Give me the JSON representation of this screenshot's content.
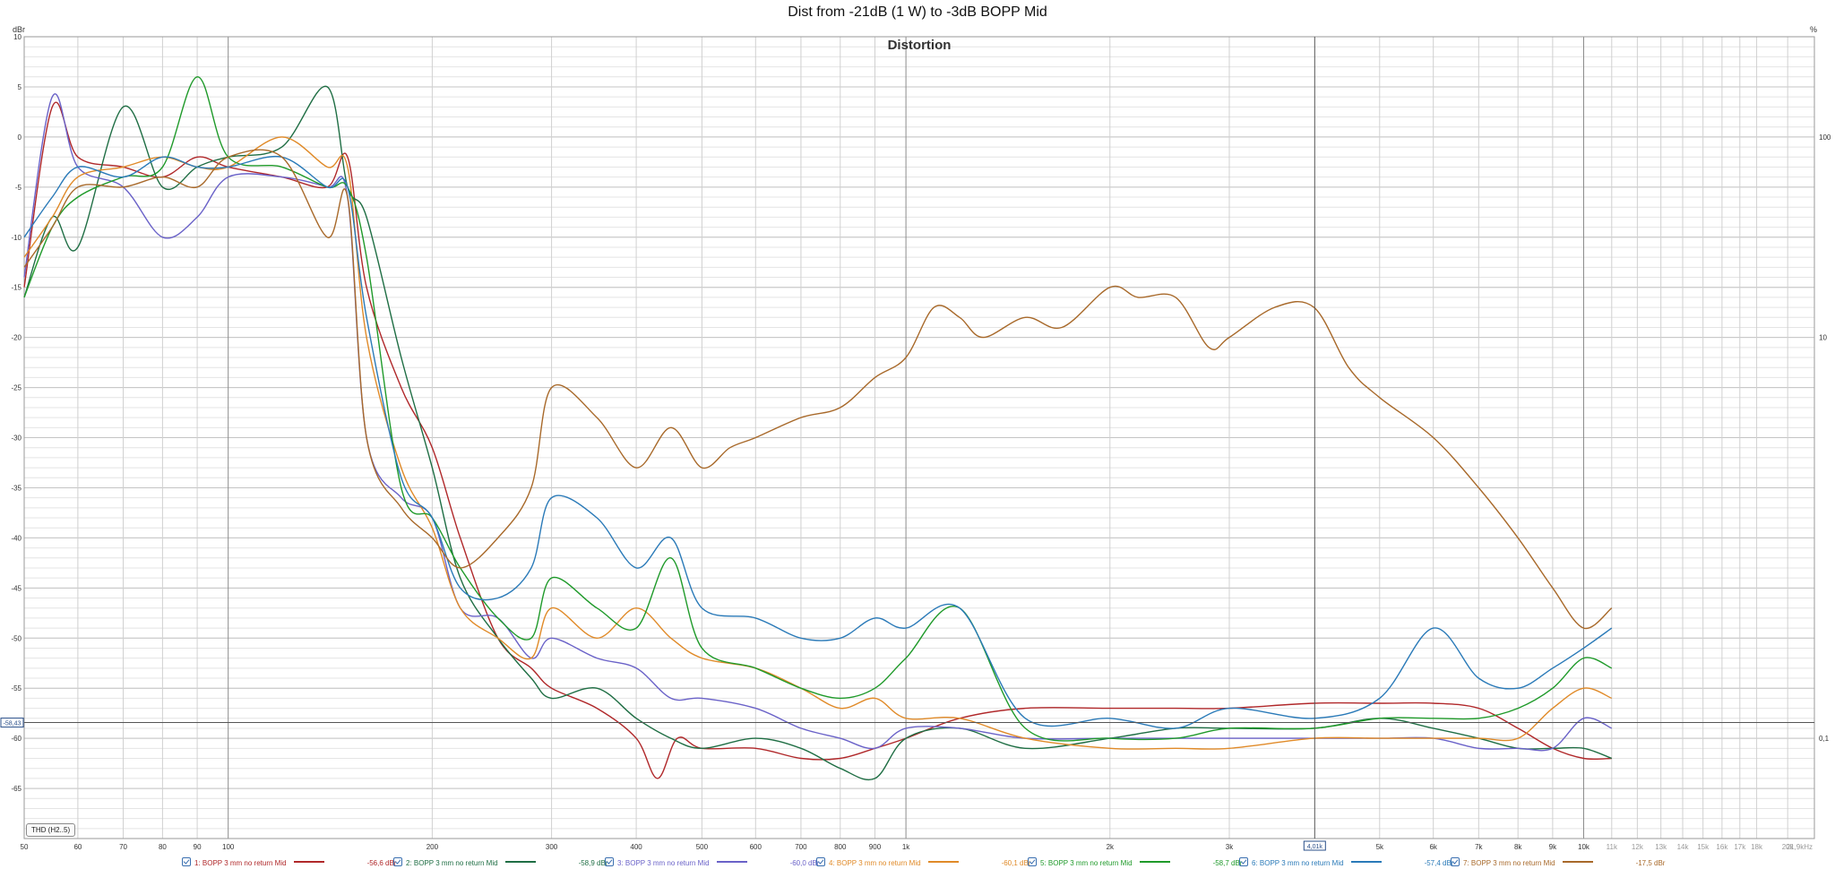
{
  "window": {
    "title": "Dist from -21dB (1 W) to -3dB BOPP Mid"
  },
  "chart_title": "Distortion",
  "units": {
    "left": "dBr",
    "right": "%"
  },
  "cursor": {
    "freq_label": "4,01k",
    "level_label": "-58,43",
    "freq": 4010,
    "level": -58.43
  },
  "thd_button": {
    "label": "THD (H2..5)"
  },
  "colors": {
    "1": "#b0282a",
    "2": "#1f6e44",
    "3": "#6a62c8",
    "4": "#e08a28",
    "5": "#1f9a2a",
    "6": "#2a7ab8",
    "7": "#a8692a"
  },
  "legend": [
    {
      "label": "1: BOPP 3 mm no return Mid",
      "value": "-56,6 dBr",
      "color": "#b0282a"
    },
    {
      "label": "2: BOPP 3 mm no return Mid",
      "value": "-58,9 dBr",
      "color": "#1f6e44"
    },
    {
      "label": "3: BOPP 3 mm no return Mid",
      "value": "-60,0 dBr",
      "color": "#6a62c8"
    },
    {
      "label": "4: BOPP 3 mm no return Mid",
      "value": "-60,1 dBr",
      "color": "#e08a28"
    },
    {
      "label": "5: BOPP 3 mm no return Mid",
      "value": "-58,7 dBr",
      "color": "#1f9a2a"
    },
    {
      "label": "6: BOPP 3 mm no return Mid",
      "value": "-57,4 dBr",
      "color": "#2a7ab8"
    },
    {
      "label": "7: BOPP 3 mm no return Mid",
      "value": "-17,5 dBr",
      "color": "#a8692a"
    }
  ],
  "chart_data": {
    "type": "line",
    "title": "Distortion",
    "xscale": "log",
    "xlim": [
      50,
      21900
    ],
    "ylim": [
      -70,
      10
    ],
    "grid": true,
    "legend_position": "bottom",
    "x_ticks": [
      {
        "v": 50,
        "t": "50"
      },
      {
        "v": 60,
        "t": "60"
      },
      {
        "v": 70,
        "t": "70"
      },
      {
        "v": 80,
        "t": "80"
      },
      {
        "v": 90,
        "t": "90"
      },
      {
        "v": 100,
        "t": "100"
      },
      {
        "v": 200,
        "t": "200"
      },
      {
        "v": 300,
        "t": "300"
      },
      {
        "v": 400,
        "t": "400"
      },
      {
        "v": 500,
        "t": "500"
      },
      {
        "v": 600,
        "t": "600"
      },
      {
        "v": 700,
        "t": "700"
      },
      {
        "v": 800,
        "t": "800"
      },
      {
        "v": 900,
        "t": "900"
      },
      {
        "v": 1000,
        "t": "1k"
      },
      {
        "v": 2000,
        "t": "2k"
      },
      {
        "v": 3000,
        "t": "3k"
      },
      {
        "v": 5000,
        "t": "5k"
      },
      {
        "v": 6000,
        "t": "6k"
      },
      {
        "v": 7000,
        "t": "7k"
      },
      {
        "v": 8000,
        "t": "8k"
      },
      {
        "v": 9000,
        "t": "9k"
      },
      {
        "v": 10000,
        "t": "10k"
      },
      {
        "v": 11000,
        "t": "11k"
      },
      {
        "v": 12000,
        "t": "12k"
      },
      {
        "v": 13000,
        "t": "13k"
      },
      {
        "v": 14000,
        "t": "14k"
      },
      {
        "v": 15000,
        "t": "15k"
      },
      {
        "v": 16000,
        "t": "16k"
      },
      {
        "v": 17000,
        "t": "17k"
      },
      {
        "v": 18000,
        "t": "18k"
      },
      {
        "v": 20000,
        "t": "20k"
      },
      {
        "v": 21900,
        "t": "21,9kHz"
      }
    ],
    "y_ticks": [
      10,
      5,
      0,
      -5,
      -10,
      -15,
      -20,
      -25,
      -30,
      -35,
      -40,
      -45,
      -50,
      -55,
      -60,
      -65
    ],
    "y_right_ticks": [
      {
        "dbr": 0,
        "t": "100"
      },
      {
        "dbr": -20,
        "t": "10"
      },
      {
        "dbr": -60,
        "t": "0,1"
      }
    ],
    "series": [
      {
        "name": "1: BOPP 3 mm no return Mid",
        "color": "#b0282a",
        "x": [
          50,
          55,
          60,
          70,
          80,
          90,
          100,
          120,
          140,
          150,
          160,
          180,
          200,
          220,
          250,
          280,
          300,
          350,
          400,
          430,
          460,
          500,
          600,
          700,
          800,
          900,
          1000,
          1200,
          1500,
          2000,
          2500,
          3000,
          4000,
          5000,
          6000,
          7000,
          8000,
          9000,
          10000,
          11000
        ],
        "y": [
          -15,
          3,
          -2,
          -3,
          -4,
          -2,
          -3,
          -4,
          -5,
          -2,
          -15,
          -25,
          -31,
          -40,
          -50,
          -53,
          -55,
          -57,
          -60,
          -64,
          -60,
          -61,
          -61,
          -62,
          -62,
          -61,
          -60,
          -58,
          -57,
          -57,
          -57,
          -57,
          -56.5,
          -56.5,
          -56.5,
          -57,
          -59,
          -61,
          -62,
          -62
        ]
      },
      {
        "name": "2: BOPP 3 mm no return Mid",
        "color": "#1f6e44",
        "x": [
          50,
          55,
          60,
          70,
          80,
          90,
          100,
          120,
          140,
          150,
          160,
          180,
          200,
          220,
          250,
          280,
          300,
          350,
          400,
          450,
          500,
          600,
          700,
          800,
          900,
          1000,
          1200,
          1500,
          2000,
          2500,
          3000,
          4000,
          5000,
          6000,
          7000,
          8000,
          9000,
          10000,
          11000
        ],
        "y": [
          -16,
          -8,
          -11,
          3,
          -5,
          -3,
          -2,
          -1,
          5,
          -5,
          -8,
          -22,
          -33,
          -44,
          -50,
          -54,
          -56,
          -55,
          -58,
          -60,
          -61,
          -60,
          -61,
          -63,
          -64,
          -60,
          -59,
          -61,
          -60,
          -59,
          -59,
          -59,
          -58,
          -59,
          -60,
          -61,
          -61,
          -61,
          -62
        ]
      },
      {
        "name": "3: BOPP 3 mm no return Mid",
        "color": "#6a62c8",
        "x": [
          50,
          55,
          60,
          70,
          80,
          90,
          100,
          120,
          140,
          150,
          160,
          180,
          200,
          220,
          250,
          280,
          300,
          350,
          400,
          450,
          500,
          600,
          700,
          800,
          900,
          1000,
          1200,
          1500,
          2000,
          2500,
          3000,
          4000,
          5000,
          6000,
          7000,
          8000,
          9000,
          10000,
          11000
        ],
        "y": [
          -14,
          4,
          -3,
          -5,
          -10,
          -8,
          -4,
          -4,
          -5,
          -6,
          -30,
          -36,
          -38,
          -47,
          -48,
          -52,
          -50,
          -52,
          -53,
          -56,
          -56,
          -57,
          -59,
          -60,
          -61,
          -59,
          -59,
          -60,
          -60,
          -60,
          -60,
          -60,
          -60,
          -60,
          -61,
          -61,
          -61,
          -58,
          -59
        ]
      },
      {
        "name": "4: BOPP 3 mm no return Mid",
        "color": "#e08a28",
        "x": [
          50,
          55,
          60,
          70,
          80,
          90,
          100,
          120,
          140,
          150,
          160,
          180,
          200,
          220,
          250,
          280,
          300,
          350,
          400,
          450,
          500,
          600,
          700,
          800,
          900,
          1000,
          1200,
          1500,
          2000,
          2500,
          3000,
          4000,
          5000,
          6000,
          7000,
          8000,
          9000,
          10000,
          11000
        ],
        "y": [
          -12,
          -8,
          -4,
          -3,
          -2,
          -3,
          -3,
          0,
          -3,
          -3,
          -20,
          -33,
          -39,
          -47,
          -50,
          -52,
          -47,
          -50,
          -47,
          -50,
          -52,
          -53,
          -55,
          -57,
          -56,
          -58,
          -58,
          -60,
          -61,
          -61,
          -61,
          -60,
          -60,
          -60,
          -60,
          -60,
          -57,
          -55,
          -56
        ]
      },
      {
        "name": "5: BOPP 3 mm no return Mid",
        "color": "#1f9a2a",
        "x": [
          50,
          55,
          60,
          70,
          80,
          90,
          100,
          120,
          140,
          150,
          160,
          180,
          200,
          220,
          250,
          280,
          300,
          350,
          400,
          450,
          500,
          600,
          700,
          800,
          900,
          1000,
          1200,
          1500,
          2000,
          2500,
          3000,
          4000,
          5000,
          6000,
          7000,
          8000,
          9000,
          10000,
          11000
        ],
        "y": [
          -16,
          -9,
          -6,
          -4,
          -3,
          6,
          -2,
          -3,
          -5,
          -5,
          -12,
          -35,
          -38,
          -43,
          -48,
          -50,
          -44,
          -47,
          -49,
          -42,
          -51,
          -53,
          -55,
          -56,
          -55,
          -52,
          -47,
          -59,
          -60,
          -60,
          -59,
          -59,
          -58,
          -58,
          -58,
          -57,
          -55,
          -52,
          -53
        ]
      },
      {
        "name": "6: BOPP 3 mm no return Mid",
        "color": "#2a7ab8",
        "x": [
          50,
          55,
          60,
          70,
          80,
          90,
          100,
          120,
          140,
          150,
          160,
          180,
          200,
          220,
          250,
          280,
          300,
          350,
          400,
          450,
          500,
          600,
          700,
          800,
          900,
          1000,
          1200,
          1500,
          2000,
          2500,
          3000,
          4000,
          5000,
          6000,
          7000,
          8000,
          9000,
          10000,
          11000
        ],
        "y": [
          -10,
          -6,
          -3,
          -4,
          -2,
          -3,
          -3,
          -2,
          -5,
          -5,
          -18,
          -34,
          -38,
          -45,
          -46,
          -43,
          -36,
          -38,
          -43,
          -40,
          -47,
          -48,
          -50,
          -50,
          -48,
          -49,
          -47,
          -58,
          -58,
          -59,
          -57,
          -58,
          -56,
          -49,
          -54,
          -55,
          -53,
          -51,
          -49
        ]
      },
      {
        "name": "7: BOPP 3 mm no return Mid",
        "color": "#a8692a",
        "x": [
          50,
          55,
          60,
          70,
          80,
          90,
          100,
          120,
          140,
          150,
          160,
          180,
          200,
          220,
          250,
          280,
          300,
          350,
          400,
          450,
          500,
          550,
          600,
          700,
          800,
          900,
          1000,
          1100,
          1200,
          1300,
          1500,
          1700,
          2000,
          2200,
          2500,
          2800,
          3000,
          3500,
          4000,
          4500,
          5000,
          6000,
          7000,
          8000,
          9000,
          10000,
          11000
        ],
        "y": [
          -13,
          -9,
          -5,
          -5,
          -4,
          -5,
          -2,
          -2,
          -10,
          -6,
          -30,
          -37,
          -40,
          -43,
          -40,
          -35,
          -25,
          -28,
          -33,
          -29,
          -33,
          -31,
          -30,
          -28,
          -27,
          -24,
          -22,
          -17,
          -18,
          -20,
          -18,
          -19,
          -15,
          -16,
          -16,
          -21,
          -20,
          -17,
          -17,
          -23,
          -26,
          -30,
          -35,
          -40,
          -45,
          -49,
          -47
        ]
      }
    ]
  }
}
